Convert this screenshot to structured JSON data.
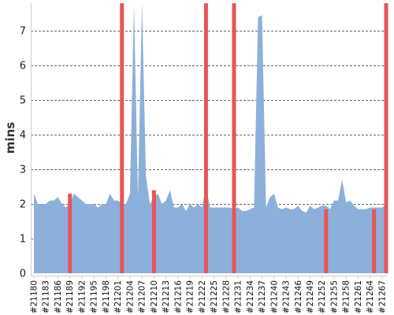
{
  "chart_data": {
    "type": "area",
    "title": "",
    "xlabel": "",
    "ylabel": "mins",
    "ylim": [
      0,
      7.8
    ],
    "yticks": [
      0,
      1,
      2,
      3,
      4,
      5,
      6,
      7
    ],
    "grid": true,
    "colors": {
      "area": "#8db0da",
      "highlight": "#e8545a",
      "grid": "#666666"
    },
    "x_tick_labels": [
      "#21180",
      "#21183",
      "#21186",
      "#21189",
      "#21192",
      "#21195",
      "#21198",
      "#21201",
      "#21204",
      "#21207",
      "#21210",
      "#21213",
      "#21216",
      "#21219",
      "#21222",
      "#21225",
      "#21228",
      "#21231",
      "#21234",
      "#21237",
      "#21240",
      "#21243",
      "#21246",
      "#21249",
      "#21252",
      "#21255",
      "#21258",
      "#21261",
      "#21264",
      "#21267"
    ],
    "x": [
      21180,
      21181,
      21182,
      21183,
      21184,
      21185,
      21186,
      21187,
      21188,
      21189,
      21190,
      21191,
      21192,
      21193,
      21194,
      21195,
      21196,
      21197,
      21198,
      21199,
      21200,
      21201,
      21202,
      21203,
      21204,
      21205,
      21206,
      21207,
      21208,
      21209,
      21210,
      21211,
      21212,
      21213,
      21214,
      21215,
      21216,
      21217,
      21218,
      21219,
      21220,
      21221,
      21222,
      21223,
      21224,
      21225,
      21226,
      21227,
      21228,
      21229,
      21230,
      21231,
      21232,
      21233,
      21234,
      21235,
      21236,
      21237,
      21238,
      21239,
      21240,
      21241,
      21242,
      21243,
      21244,
      21245,
      21246,
      21247,
      21248,
      21249,
      21250,
      21251,
      21252,
      21253,
      21254,
      21255,
      21256,
      21257,
      21258,
      21259,
      21260,
      21261,
      21262,
      21263,
      21264,
      21265,
      21266,
      21267,
      21268
    ],
    "series": [
      {
        "values": [
          2.3,
          2.0,
          2.0,
          2.0,
          2.1,
          2.1,
          2.2,
          2.0,
          1.9,
          2.0,
          2.3,
          2.2,
          2.1,
          2.0,
          2.0,
          2.0,
          1.9,
          2.0,
          2.0,
          2.3,
          2.1,
          2.1,
          2.0,
          2.0,
          2.3,
          8.5,
          2.2,
          8.5,
          2.8,
          2.0,
          2.2,
          2.3,
          2.0,
          2.1,
          2.4,
          1.9,
          1.9,
          2.0,
          1.8,
          2.0,
          1.9,
          2.0,
          1.9,
          2.5,
          1.9,
          1.9,
          1.9,
          1.9,
          1.9,
          1.9,
          1.85,
          1.9,
          1.8,
          1.8,
          1.85,
          1.9,
          7.4,
          7.45,
          1.9,
          2.2,
          2.3,
          1.9,
          1.85,
          1.9,
          1.85,
          1.85,
          1.95,
          1.8,
          1.75,
          1.95,
          1.85,
          1.9,
          1.95,
          1.95,
          1.85,
          2.1,
          2.1,
          2.7,
          2.05,
          2.1,
          1.95,
          1.85,
          1.85,
          1.85,
          1.9,
          1.9,
          1.9,
          1.9,
          2.0
        ]
      }
    ],
    "highlighted_runs": [
      {
        "x": 21189,
        "value": 2.3
      },
      {
        "x": 21202,
        "value": 7.8
      },
      {
        "x": 21210,
        "value": 2.4
      },
      {
        "x": 21223,
        "value": 7.8
      },
      {
        "x": 21230,
        "value": 7.8
      },
      {
        "x": 21253,
        "value": 1.85
      },
      {
        "x": 21265,
        "value": 1.85
      },
      {
        "x": 21268,
        "value": 7.8
      }
    ]
  }
}
